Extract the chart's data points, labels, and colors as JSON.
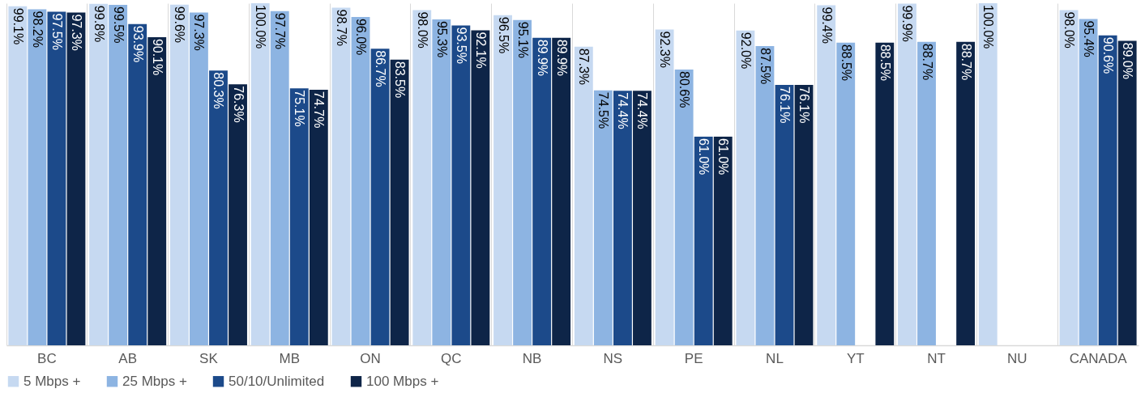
{
  "chart_data": {
    "type": "bar",
    "categories": [
      "BC",
      "AB",
      "SK",
      "MB",
      "ON",
      "QC",
      "NB",
      "NS",
      "PE",
      "NL",
      "YT",
      "NT",
      "NU",
      "CANADA"
    ],
    "ylim": [
      0,
      100
    ],
    "grid": "x",
    "legend": "bottom",
    "series": [
      {
        "name": "5 Mbps +",
        "color": "#c6d9f1",
        "values": [
          99.1,
          99.8,
          99.6,
          100.0,
          98.7,
          98.0,
          96.5,
          87.3,
          92.3,
          92.0,
          99.4,
          99.9,
          100.0,
          98.0
        ],
        "value_labels": [
          "99.1%",
          "99.8%",
          "99.6%",
          "100.0%",
          "98.7%",
          "98.0%",
          "96.5%",
          "87.3%",
          "92.3%",
          "92.0%",
          "99.4%",
          "99.9%",
          "100.0%",
          "98.0%"
        ]
      },
      {
        "name": "25 Mbps +",
        "color": "#8db4e2",
        "values": [
          98.2,
          99.5,
          97.3,
          97.7,
          96.0,
          95.3,
          95.1,
          74.5,
          80.6,
          87.5,
          88.5,
          88.7,
          null,
          95.4
        ],
        "value_labels": [
          "98.2%",
          "99.5%",
          "97.3%",
          "97.7%",
          "96.0%",
          "95.3%",
          "95.1%",
          "74.5%",
          "80.6%",
          "87.5%",
          "88.5%",
          "88.7%",
          null,
          "95.4%"
        ]
      },
      {
        "name": "50/10/Unlimited",
        "color": "#1c4a8a",
        "values": [
          97.5,
          93.9,
          80.3,
          75.1,
          86.7,
          93.5,
          89.9,
          74.4,
          61.0,
          76.1,
          null,
          null,
          null,
          90.6
        ],
        "value_labels": [
          "97.5%",
          "93.9%",
          "80.3%",
          "75.1%",
          "86.7%",
          "93.5%",
          "89.9%",
          "74.4%",
          "61.0%",
          "76.1%",
          null,
          null,
          null,
          "90.6%"
        ]
      },
      {
        "name": "100 Mbps +",
        "color": "#0e2548",
        "values": [
          97.3,
          90.1,
          76.3,
          74.7,
          83.5,
          92.1,
          89.9,
          74.4,
          61.0,
          76.1,
          88.5,
          88.7,
          null,
          89.0
        ],
        "value_labels": [
          "97.3%",
          "90.1%",
          "76.3%",
          "74.7%",
          "83.5%",
          "92.1%",
          "89.9%",
          "74.4%",
          "61.0%",
          "76.1%",
          "88.5%",
          "88.7%",
          null,
          "89.0%"
        ]
      }
    ]
  }
}
